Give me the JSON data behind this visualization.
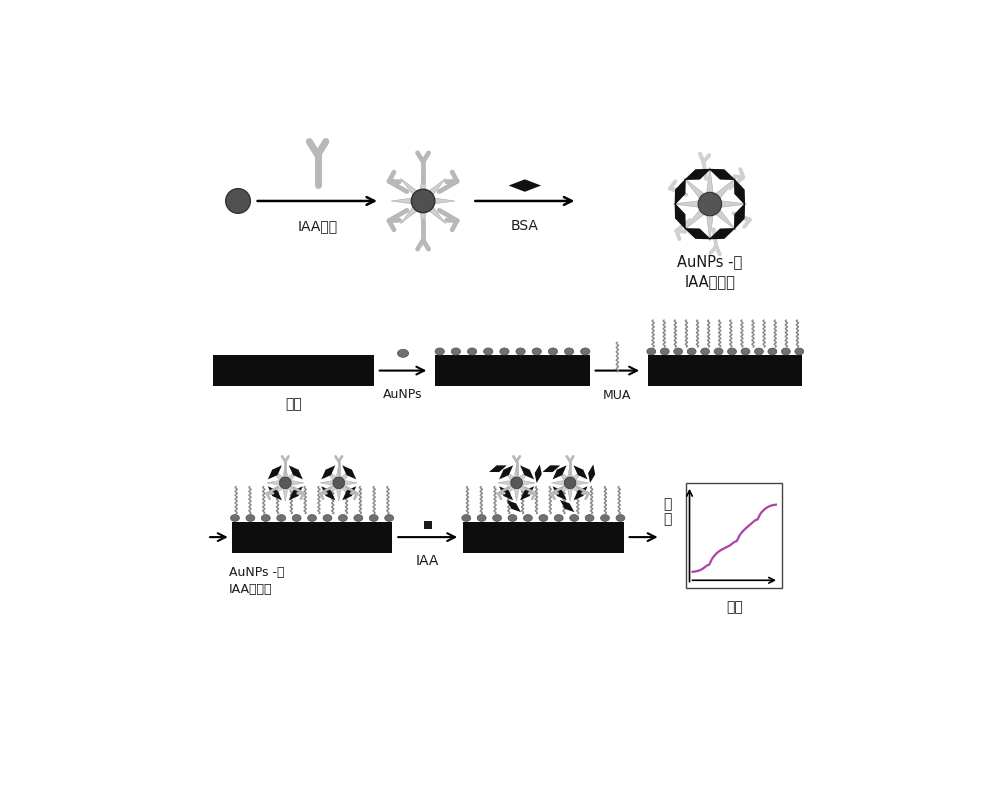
{
  "bg_color": "#ffffff",
  "text_color": "#1a1a1a",
  "dark_gray": "#505050",
  "med_gray": "#808080",
  "light_gray": "#c8c8c8",
  "very_light_gray": "#d0d0d0",
  "black": "#111111",
  "particle_color": "#686868",
  "antibody_color": "#b8b8b8",
  "bsa_color": "#111111",
  "mua_color": "#888888",
  "aunp_color": "#707070",
  "labels": {
    "IAA_antibody": "IAA抗体",
    "BSA": "BSA",
    "AuNPs_complex": "AuNPs -抗\nIAA复合物",
    "electrode": "电极",
    "AuNPs": "AuNPs",
    "MUA": "MUA",
    "AuNPs_complex2": "AuNPs -抗\nIAA复合物",
    "IAA": "IAA",
    "current": "电\n流",
    "time": "时间"
  },
  "figsize": [
    10.0,
    8.01
  ],
  "dpi": 100
}
